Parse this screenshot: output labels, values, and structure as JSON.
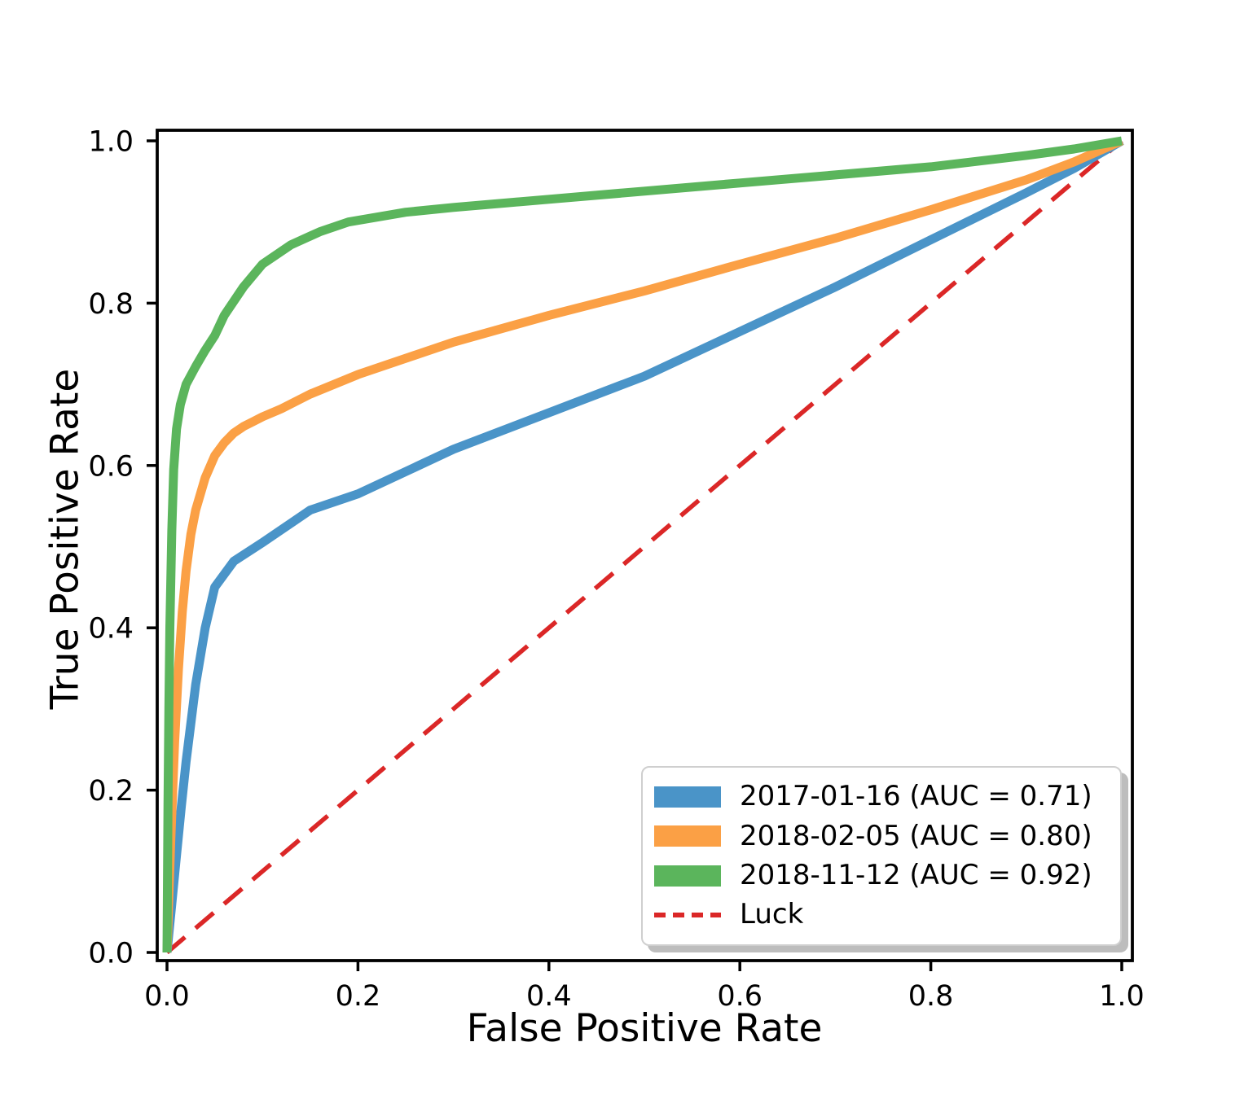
{
  "figure": {
    "background_color": "#ffffff",
    "axes_edge_color": "#000000"
  },
  "chart_data": {
    "type": "line",
    "subtype": "roc-curves",
    "title": "",
    "xlabel": "False Positive Rate",
    "ylabel": "True Positive Rate",
    "xlim": [
      -0.01,
      1.01
    ],
    "ylim": [
      -0.01,
      1.01
    ],
    "grid": false,
    "x_ticks": [
      0.0,
      0.2,
      0.4,
      0.6,
      0.8,
      1.0
    ],
    "x_tick_labels": [
      "0.0",
      "0.2",
      "0.4",
      "0.6",
      "0.8",
      "1.0"
    ],
    "y_ticks": [
      0.0,
      0.2,
      0.4,
      0.6,
      0.8,
      1.0
    ],
    "y_tick_labels": [
      "0.0",
      "0.2",
      "0.4",
      "0.6",
      "0.8",
      "1.0"
    ],
    "legend_position": "lower right",
    "legend_shadow": true,
    "series": [
      {
        "name": "2017-01-16 (AUC = 0.71)",
        "date": "2017-01-16",
        "auc": 0.71,
        "color": "#4A94C8",
        "line_style": "solid",
        "line_width": 11,
        "x": [
          0,
          0.005,
          0.01,
          0.015,
          0.02,
          0.03,
          0.04,
          0.05,
          0.07,
          0.1,
          0.15,
          0.2,
          0.3,
          0.4,
          0.5,
          0.6,
          0.7,
          0.8,
          0.9,
          0.95,
          1.0
        ],
        "y": [
          0,
          0.06,
          0.12,
          0.18,
          0.235,
          0.33,
          0.4,
          0.45,
          0.482,
          0.505,
          0.545,
          0.565,
          0.62,
          0.665,
          0.71,
          0.765,
          0.82,
          0.878,
          0.936,
          0.966,
          1.0
        ]
      },
      {
        "name": "2018-02-05 (AUC = 0.80)",
        "date": "2018-02-05",
        "auc": 0.8,
        "color": "#FBA045",
        "line_style": "solid",
        "line_width": 11,
        "x": [
          0,
          0.004,
          0.008,
          0.012,
          0.016,
          0.02,
          0.025,
          0.03,
          0.04,
          0.05,
          0.06,
          0.07,
          0.08,
          0.09,
          0.1,
          0.12,
          0.15,
          0.2,
          0.3,
          0.4,
          0.5,
          0.6,
          0.7,
          0.8,
          0.9,
          0.95,
          1.0
        ],
        "y": [
          0,
          0.14,
          0.26,
          0.35,
          0.42,
          0.47,
          0.515,
          0.545,
          0.585,
          0.612,
          0.628,
          0.64,
          0.648,
          0.654,
          0.66,
          0.67,
          0.688,
          0.712,
          0.752,
          0.785,
          0.815,
          0.848,
          0.88,
          0.915,
          0.952,
          0.974,
          1.0
        ]
      },
      {
        "name": "2018-11-12 (AUC = 0.92)",
        "date": "2018-11-12",
        "auc": 0.92,
        "color": "#5BB55C",
        "line_style": "solid",
        "line_width": 11,
        "x": [
          0,
          0.001,
          0.002,
          0.003,
          0.005,
          0.007,
          0.01,
          0.014,
          0.02,
          0.03,
          0.04,
          0.05,
          0.06,
          0.08,
          0.1,
          0.13,
          0.16,
          0.19,
          0.25,
          0.3,
          0.4,
          0.5,
          0.6,
          0.7,
          0.8,
          0.9,
          0.95,
          1.0
        ],
        "y": [
          0,
          0.18,
          0.3,
          0.4,
          0.52,
          0.595,
          0.645,
          0.675,
          0.7,
          0.722,
          0.742,
          0.76,
          0.785,
          0.82,
          0.848,
          0.872,
          0.888,
          0.9,
          0.912,
          0.918,
          0.928,
          0.938,
          0.948,
          0.958,
          0.968,
          0.982,
          0.99,
          1.0
        ]
      },
      {
        "name": "Luck",
        "color": "#DB2727",
        "line_style": "dashed",
        "line_width": 5.5,
        "x": [
          0,
          1
        ],
        "y": [
          0,
          1
        ]
      }
    ]
  }
}
